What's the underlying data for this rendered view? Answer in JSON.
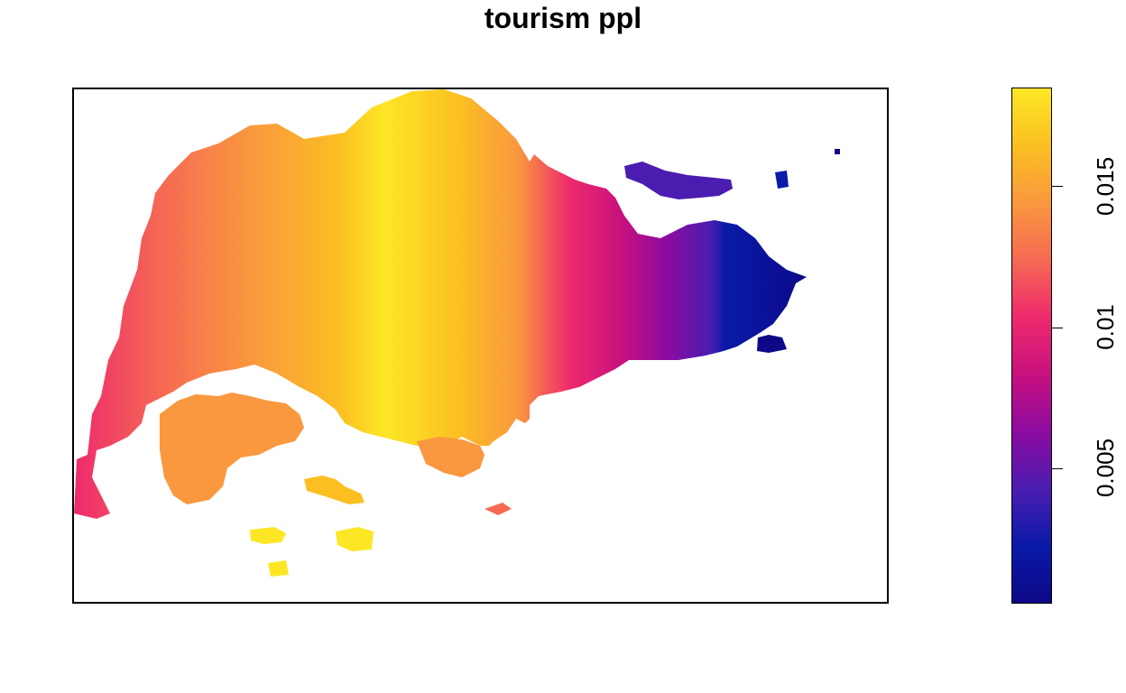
{
  "title": "tourism ppl",
  "legend": {
    "ticks": [
      {
        "value": 0.015,
        "label": "0.015"
      },
      {
        "value": 0.01,
        "label": "0.01"
      },
      {
        "value": 0.005,
        "label": "0.005"
      }
    ],
    "range": [
      0.0002,
      0.0185
    ],
    "palette": [
      "#0D0887",
      "#0A1AA8",
      "#4B1CB0",
      "#8E0BA0",
      "#C8117E",
      "#EE2A6D",
      "#F66A53",
      "#F9983E",
      "#FBBF22",
      "#FDE725"
    ]
  },
  "colors": {
    "frame": "#000000",
    "background": "#ffffff"
  }
}
